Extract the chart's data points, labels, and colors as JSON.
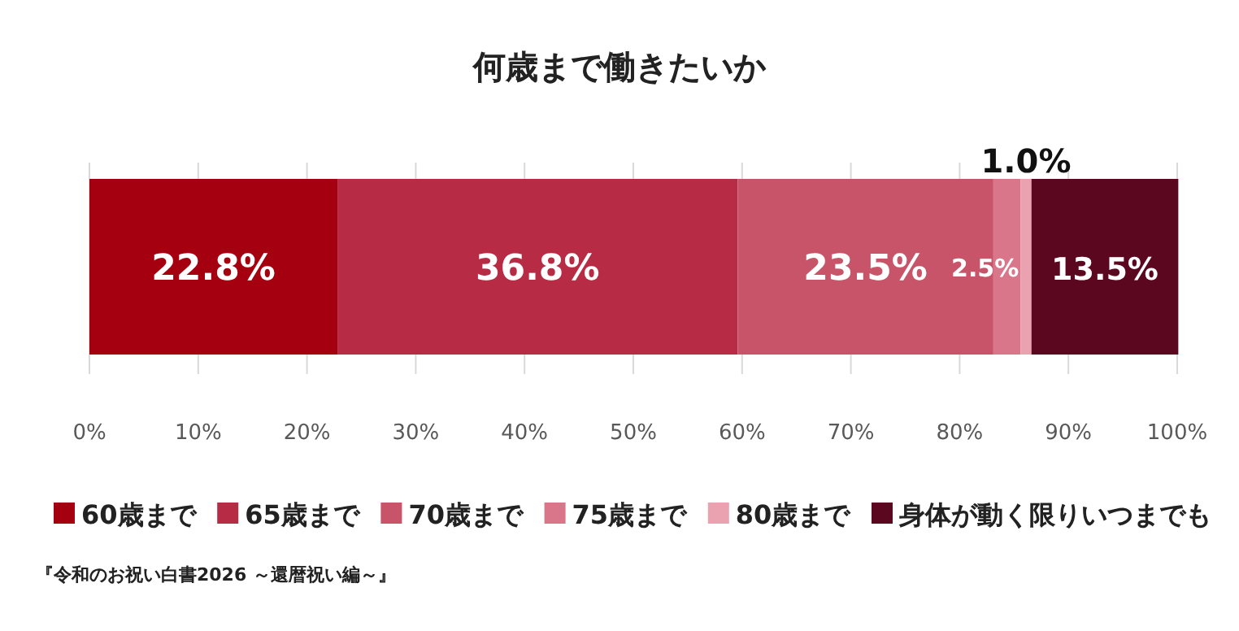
{
  "chart_data": {
    "type": "bar",
    "orientation": "horizontal",
    "stacked": true,
    "title": "何歳まで働きたいか",
    "categories": [
      null
    ],
    "series": [
      {
        "name": "60歳まで",
        "color": "#a50010",
        "values": [
          22.8
        ],
        "value_labels": [
          "22.8%"
        ]
      },
      {
        "name": "65歳まで",
        "color": "#b82b45",
        "values": [
          36.8
        ],
        "value_labels": [
          "36.8%"
        ]
      },
      {
        "name": "70歳まで",
        "color": "#c75468",
        "values": [
          23.5
        ],
        "value_labels": [
          "23.5%"
        ]
      },
      {
        "name": "75歳まで",
        "color": "#d97689",
        "values": [
          2.5
        ],
        "value_labels": [
          "2.5%"
        ]
      },
      {
        "name": "80歳まで",
        "color": "#eba2b0",
        "values": [
          1.0
        ],
        "value_labels": [
          "1.0%"
        ]
      },
      {
        "name": "身体が動く限りいつまでも",
        "color": "#5c0720",
        "values": [
          13.5
        ],
        "value_labels": [
          "13.5%"
        ]
      }
    ],
    "xlim": [
      0,
      100
    ],
    "xticks": [
      {
        "value": 0,
        "label": "0%"
      },
      {
        "value": 10,
        "label": "10%"
      },
      {
        "value": 20,
        "label": "20%"
      },
      {
        "value": 30,
        "label": "30%"
      },
      {
        "value": 40,
        "label": "40%"
      },
      {
        "value": 50,
        "label": "50%"
      },
      {
        "value": 60,
        "label": "60%"
      },
      {
        "value": 70,
        "label": "70%"
      },
      {
        "value": 80,
        "label": "80%"
      },
      {
        "value": 90,
        "label": "90%"
      },
      {
        "value": 100,
        "label": "100%"
      }
    ],
    "grid": "x",
    "legend": "bottom",
    "annotations": [
      "『令和のお祝い白書2026 ～還暦祝い編～』"
    ]
  }
}
